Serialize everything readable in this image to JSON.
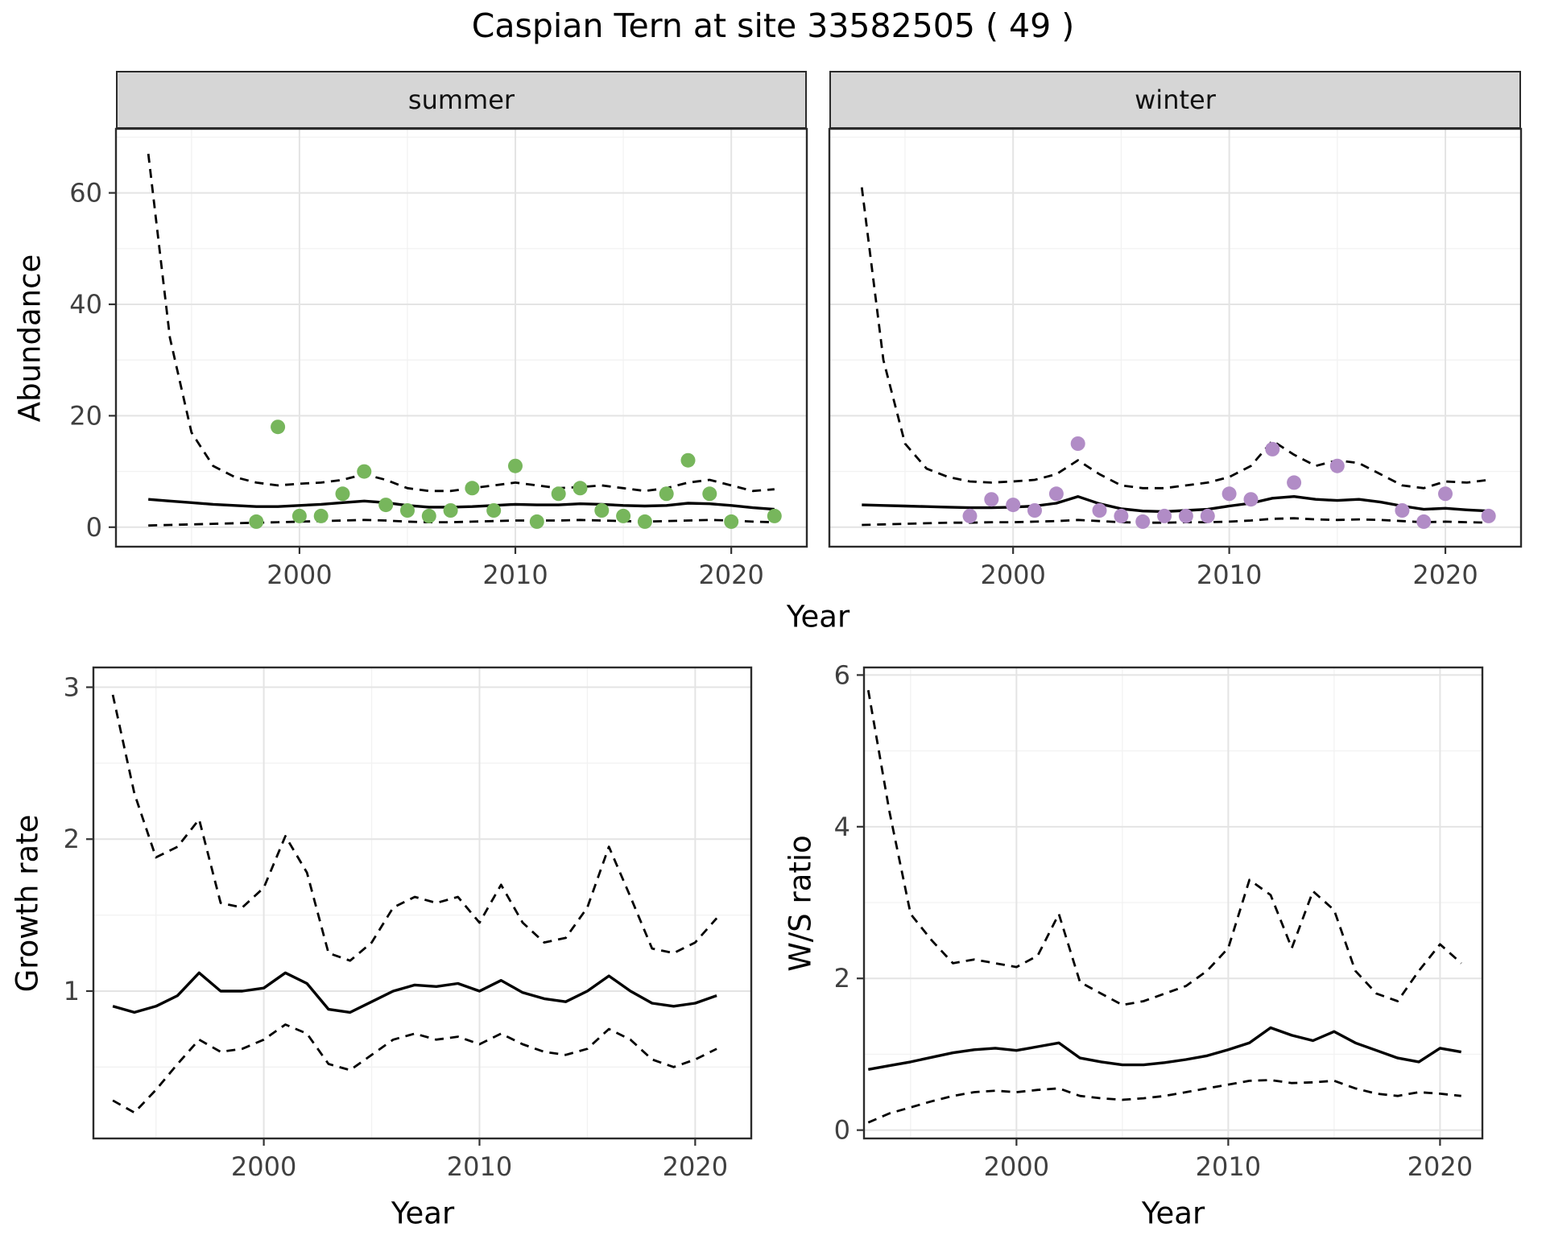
{
  "title": "Caspian Tern at site 33582505 ( 49 )",
  "labels": {
    "year": "Year",
    "abundance": "Abundance",
    "growth_rate": "Growth rate",
    "ws_ratio": "W/S ratio"
  },
  "style": {
    "summer_point_color": "#77b65c",
    "winter_point_color": "#b18cc6",
    "line_color": "#000000",
    "grid_major": "#e4e4e4",
    "grid_minor": "#f2f2f2",
    "strip_bg": "#d6d6d6",
    "border": "#2b2b2b",
    "tick_label_color": "#404040"
  },
  "chart_data": [
    {
      "id": "abundance-summer",
      "type": "scatter",
      "facet_label": "summer",
      "x_label": "Year",
      "y_label": "Abundance",
      "x_domain": [
        1991.5,
        2023.5
      ],
      "y_domain": [
        -3.5,
        71.5
      ],
      "x_ticks": [
        2000,
        2010,
        2020
      ],
      "y_ticks": [
        0,
        20,
        40,
        60
      ],
      "x_minor": [
        1995,
        2005,
        2015
      ],
      "y_minor": [
        10,
        30,
        50,
        70
      ],
      "show_y_ticks": true,
      "series": [
        {
          "name": "upper-ci",
          "style": "dashed",
          "x_start": 1993,
          "step": 1,
          "values": [
            67,
            34,
            17,
            11,
            9,
            8,
            7.5,
            7.8,
            8,
            8.5,
            9.5,
            8.5,
            7,
            6.5,
            6.5,
            7,
            7.5,
            8,
            7.5,
            7,
            7.2,
            7.5,
            7,
            6.5,
            7,
            8,
            8.5,
            7.5,
            6.5,
            6.8
          ]
        },
        {
          "name": "fit",
          "style": "solid",
          "x_start": 1993,
          "step": 1,
          "values": [
            5.0,
            4.7,
            4.4,
            4.1,
            3.9,
            3.7,
            3.7,
            3.9,
            4.1,
            4.4,
            4.7,
            4.4,
            3.9,
            3.6,
            3.6,
            3.7,
            3.9,
            4.1,
            4.0,
            4.0,
            4.2,
            4.1,
            3.9,
            3.8,
            3.9,
            4.3,
            4.2,
            3.9,
            3.5,
            3.2
          ]
        },
        {
          "name": "lower-ci",
          "style": "dashed",
          "x_start": 1993,
          "step": 1,
          "values": [
            0.3,
            0.4,
            0.5,
            0.6,
            0.7,
            0.8,
            0.9,
            1.0,
            1.1,
            1.2,
            1.3,
            1.2,
            1.0,
            0.9,
            0.9,
            1.0,
            1.1,
            1.2,
            1.2,
            1.2,
            1.3,
            1.2,
            1.1,
            1.0,
            1.1,
            1.2,
            1.3,
            1.2,
            1.0,
            0.9
          ]
        }
      ],
      "points": {
        "color_key": "summer_point_color",
        "x": [
          1998,
          1999,
          2000,
          2001,
          2002,
          2003,
          2004,
          2005,
          2006,
          2007,
          2008,
          2009,
          2010,
          2011,
          2012,
          2013,
          2014,
          2015,
          2016,
          2017,
          2018,
          2019,
          2020,
          2022
        ],
        "y": [
          1,
          18,
          2,
          2,
          6,
          10,
          4,
          3,
          2,
          3,
          7,
          3,
          11,
          1,
          6,
          7,
          3,
          2,
          1,
          6,
          12,
          6,
          1,
          2
        ]
      }
    },
    {
      "id": "abundance-winter",
      "type": "scatter",
      "facet_label": "winter",
      "x_label": "Year",
      "y_label": "Abundance",
      "x_domain": [
        1991.5,
        2023.5
      ],
      "y_domain": [
        -3.5,
        71.5
      ],
      "x_ticks": [
        2000,
        2010,
        2020
      ],
      "y_ticks": [
        0,
        20,
        40,
        60
      ],
      "x_minor": [
        1995,
        2005,
        2015
      ],
      "y_minor": [
        10,
        30,
        50,
        70
      ],
      "show_y_ticks": false,
      "series": [
        {
          "name": "upper-ci",
          "style": "dashed",
          "x_start": 1993,
          "step": 1,
          "values": [
            61,
            30,
            15,
            10.5,
            9,
            8.2,
            8,
            8.2,
            8.5,
            9.5,
            12,
            9.5,
            7.5,
            7,
            7,
            7.5,
            8,
            9,
            11,
            15.5,
            13,
            11,
            12,
            11.5,
            9.5,
            7.5,
            7,
            8.2,
            8,
            8.5
          ]
        },
        {
          "name": "fit",
          "style": "solid",
          "x_start": 1993,
          "step": 1,
          "values": [
            4.0,
            3.9,
            3.8,
            3.7,
            3.6,
            3.5,
            3.5,
            3.6,
            3.8,
            4.3,
            5.5,
            4.2,
            3.3,
            2.9,
            2.8,
            3.0,
            3.2,
            3.8,
            4.3,
            5.2,
            5.5,
            5.0,
            4.8,
            5.0,
            4.5,
            3.8,
            3.2,
            3.4,
            3.1,
            2.9
          ]
        },
        {
          "name": "lower-ci",
          "style": "dashed",
          "x_start": 1993,
          "step": 1,
          "values": [
            0.4,
            0.5,
            0.6,
            0.7,
            0.8,
            0.8,
            0.9,
            0.9,
            1.0,
            1.1,
            1.3,
            1.1,
            0.9,
            0.8,
            0.8,
            0.9,
            0.9,
            1.0,
            1.2,
            1.5,
            1.6,
            1.4,
            1.3,
            1.4,
            1.3,
            1.1,
            0.9,
            1.0,
            0.9,
            0.8
          ]
        }
      ],
      "points": {
        "color_key": "winter_point_color",
        "x": [
          1998,
          1999,
          2000,
          2001,
          2002,
          2003,
          2004,
          2005,
          2006,
          2007,
          2008,
          2009,
          2010,
          2011,
          2012,
          2013,
          2015,
          2018,
          2019,
          2020,
          2022
        ],
        "y": [
          2,
          5,
          4,
          3,
          6,
          15,
          3,
          2,
          1,
          2,
          2,
          2,
          6,
          5,
          14,
          8,
          11,
          3,
          1,
          6,
          2
        ]
      }
    },
    {
      "id": "growth-rate",
      "type": "line",
      "facet_label": "",
      "x_label": "Year",
      "y_label": "Growth rate",
      "x_domain": [
        1992.1,
        2022.6
      ],
      "y_domain": [
        0.03,
        3.13
      ],
      "x_ticks": [
        2000,
        2010,
        2020
      ],
      "y_ticks": [
        1,
        2,
        3
      ],
      "x_minor": [
        1995,
        2005,
        2015
      ],
      "y_minor": [
        0.5,
        1.5,
        2.5
      ],
      "show_y_ticks": true,
      "series": [
        {
          "name": "upper-ci",
          "style": "dashed",
          "x_start": 1993,
          "step": 1,
          "values": [
            2.95,
            2.3,
            1.88,
            1.95,
            2.13,
            1.58,
            1.55,
            1.68,
            2.02,
            1.78,
            1.25,
            1.2,
            1.32,
            1.55,
            1.62,
            1.58,
            1.62,
            1.45,
            1.7,
            1.45,
            1.32,
            1.35,
            1.55,
            1.95,
            1.62,
            1.28,
            1.25,
            1.32,
            1.48
          ]
        },
        {
          "name": "fit",
          "style": "solid",
          "x_start": 1993,
          "step": 1,
          "values": [
            0.9,
            0.86,
            0.9,
            0.97,
            1.12,
            1.0,
            1.0,
            1.02,
            1.12,
            1.05,
            0.88,
            0.86,
            0.93,
            1.0,
            1.04,
            1.03,
            1.05,
            1.0,
            1.07,
            0.99,
            0.95,
            0.93,
            1.0,
            1.1,
            1.0,
            0.92,
            0.9,
            0.92,
            0.97
          ]
        },
        {
          "name": "lower-ci",
          "style": "dashed",
          "x_start": 1993,
          "step": 1,
          "values": [
            0.28,
            0.2,
            0.35,
            0.52,
            0.68,
            0.6,
            0.62,
            0.68,
            0.78,
            0.72,
            0.52,
            0.48,
            0.58,
            0.68,
            0.72,
            0.68,
            0.7,
            0.65,
            0.72,
            0.65,
            0.6,
            0.58,
            0.62,
            0.75,
            0.68,
            0.55,
            0.5,
            0.55,
            0.62
          ]
        }
      ]
    },
    {
      "id": "ws-ratio",
      "type": "line",
      "facet_label": "",
      "x_label": "Year",
      "y_label": "W/S ratio",
      "x_domain": [
        1992.8,
        2022.0
      ],
      "y_domain": [
        -0.11,
        6.1
      ],
      "x_ticks": [
        2000,
        2010,
        2020
      ],
      "y_ticks": [
        0,
        2,
        4,
        6
      ],
      "x_minor": [
        1995,
        2005,
        2015
      ],
      "y_minor": [
        1,
        3,
        5
      ],
      "show_y_ticks": true,
      "series": [
        {
          "name": "upper-ci",
          "style": "dashed",
          "x_start": 1993,
          "step": 1,
          "values": [
            5.8,
            4.2,
            2.85,
            2.5,
            2.2,
            2.25,
            2.2,
            2.15,
            2.3,
            2.85,
            1.95,
            1.8,
            1.65,
            1.7,
            1.8,
            1.9,
            2.1,
            2.4,
            3.3,
            3.1,
            2.4,
            3.15,
            2.9,
            2.1,
            1.8,
            1.7,
            2.1,
            2.45,
            2.2
          ]
        },
        {
          "name": "fit",
          "style": "solid",
          "x_start": 1993,
          "step": 1,
          "values": [
            0.8,
            0.85,
            0.9,
            0.96,
            1.02,
            1.06,
            1.08,
            1.05,
            1.1,
            1.15,
            0.95,
            0.9,
            0.86,
            0.86,
            0.89,
            0.93,
            0.98,
            1.06,
            1.15,
            1.35,
            1.25,
            1.18,
            1.3,
            1.15,
            1.05,
            0.95,
            0.9,
            1.08,
            1.03
          ]
        },
        {
          "name": "lower-ci",
          "style": "dashed",
          "x_start": 1993,
          "step": 1,
          "values": [
            0.1,
            0.22,
            0.3,
            0.38,
            0.45,
            0.5,
            0.52,
            0.5,
            0.53,
            0.55,
            0.45,
            0.42,
            0.4,
            0.42,
            0.45,
            0.5,
            0.55,
            0.6,
            0.65,
            0.66,
            0.62,
            0.63,
            0.65,
            0.55,
            0.48,
            0.45,
            0.5,
            0.48,
            0.45
          ]
        }
      ]
    }
  ]
}
